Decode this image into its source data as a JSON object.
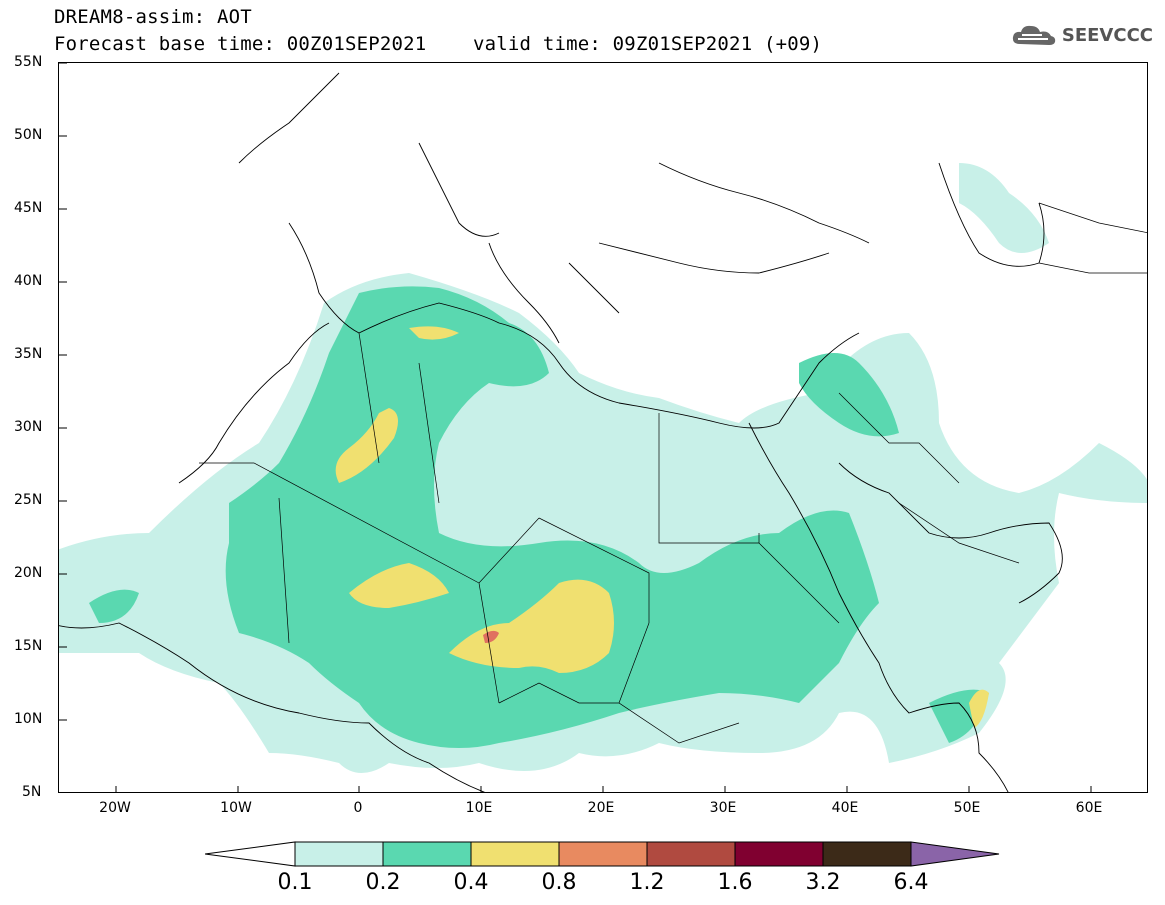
{
  "title": {
    "line1": "DREAM8-assim: AOT",
    "line2": "Forecast base time: 00Z01SEP2021    valid time: 09Z01SEP2021 (+09)"
  },
  "logo": {
    "text": "SEEVCCC",
    "icon": "cloud-icon"
  },
  "axes": {
    "lat_labels": [
      "55N",
      "50N",
      "45N",
      "40N",
      "35N",
      "30N",
      "25N",
      "20N",
      "15N",
      "10N",
      "5N"
    ],
    "lon_labels": [
      "20W",
      "10W",
      "0",
      "10E",
      "20E",
      "30E",
      "40E",
      "50E",
      "60E"
    ]
  },
  "colorbar": {
    "labels": [
      "0.1",
      "0.2",
      "0.4",
      "0.8",
      "1.2",
      "1.6",
      "3.2",
      "6.4"
    ],
    "colors": [
      "#ffffff",
      "#c8f0e8",
      "#5ad8b0",
      "#f0e070",
      "#e88a60",
      "#b04a40",
      "#800030",
      "#3c2a18",
      "#8a64a8"
    ]
  }
}
